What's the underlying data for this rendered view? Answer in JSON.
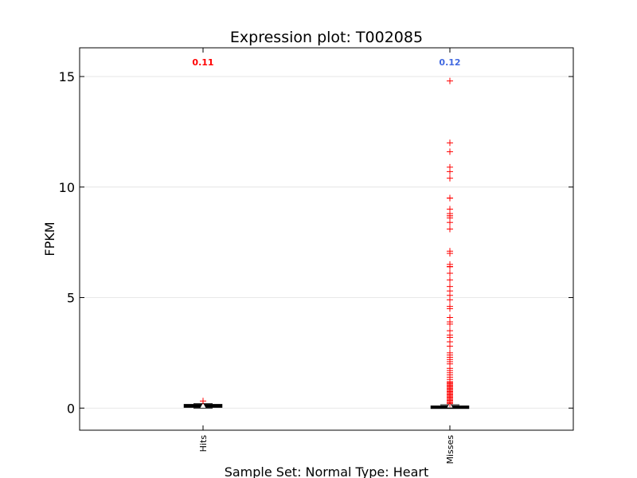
{
  "chart_data": {
    "type": "box",
    "title": "Expression plot: T002085",
    "xlabel": "Sample Set: Normal Type: Heart",
    "ylabel": "FPKM",
    "ylim": [
      -1,
      16.3
    ],
    "yticks": [
      0,
      5,
      10,
      15
    ],
    "grid": "horizontal",
    "categories": [
      "Hits",
      "Misses"
    ],
    "annotations": [
      {
        "category": "Hits",
        "text": "0.11",
        "color": "#ff0000"
      },
      {
        "category": "Misses",
        "text": "0.12",
        "color": "#4169e1"
      }
    ],
    "boxes": [
      {
        "name": "Hits",
        "q1": 0.06,
        "median": 0.1,
        "q3": 0.14,
        "whisker_low": 0.0,
        "whisker_high": 0.2,
        "mean": 0.11,
        "outliers": [
          0.32
        ]
      },
      {
        "name": "Misses",
        "q1": 0.01,
        "median": 0.03,
        "q3": 0.07,
        "whisker_low": 0.0,
        "whisker_high": 0.15,
        "mean": 0.12,
        "outliers": [
          14.8,
          12.0,
          11.6,
          10.9,
          10.7,
          10.4,
          9.5,
          9.5,
          9.0,
          8.8,
          8.7,
          8.7,
          8.6,
          8.4,
          8.1,
          7.1,
          7.0,
          6.5,
          6.4,
          6.4,
          6.4,
          6.1,
          5.8,
          5.5,
          5.3,
          5.1,
          4.9,
          4.6,
          4.5,
          4.1,
          3.9,
          3.8,
          3.5,
          3.3,
          3.2,
          3.0,
          2.8,
          2.5,
          2.4,
          2.3,
          2.2,
          2.1,
          2.0,
          1.8,
          1.7,
          1.6,
          1.5,
          1.4,
          1.3,
          1.2,
          1.15,
          1.1,
          1.05,
          1.0,
          0.95,
          0.9,
          0.85,
          0.8,
          0.75,
          0.7,
          0.65,
          0.6,
          0.55,
          0.5,
          0.45,
          0.4,
          0.35,
          0.3,
          0.25,
          0.2
        ]
      }
    ],
    "colors": {
      "outlier": "#ff0000",
      "box": "#000000",
      "whisker": "#000000",
      "grid": "#e0e0e0"
    }
  }
}
